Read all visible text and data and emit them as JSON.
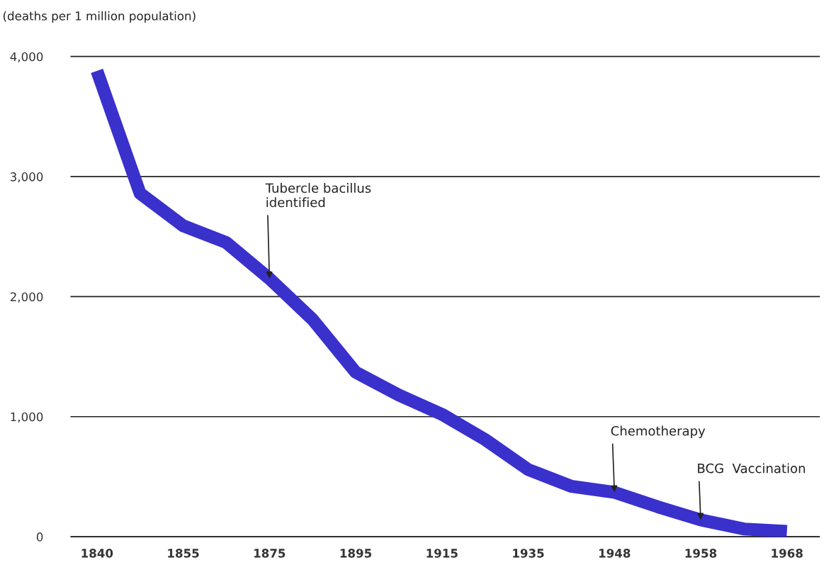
{
  "chart_data": {
    "type": "line",
    "ylabel": "(deaths per 1 million population)",
    "categories": [
      "1840",
      null,
      "1855",
      null,
      "1875",
      null,
      "1895",
      null,
      "1915",
      null,
      "1935",
      null,
      "1948",
      null,
      "1958",
      null,
      "1968"
    ],
    "series": [
      {
        "color": "#3a30cc",
        "values": [
          3880,
          2860,
          2590,
          2450,
          2150,
          1810,
          1370,
          1180,
          1020,
          810,
          560,
          420,
          370,
          250,
          140,
          65,
          45
        ]
      }
    ],
    "ylim": [
      0,
      4000
    ],
    "yticks": [
      {
        "value": 0,
        "label": "0"
      },
      {
        "value": 1000,
        "label": "1,000"
      },
      {
        "value": 2000,
        "label": "2,000"
      },
      {
        "value": 3000,
        "label": "3,000"
      },
      {
        "value": 4000,
        "label": "4,000"
      }
    ],
    "grid": "y",
    "annotations": [
      {
        "text": "Tubercle bacillus\nidentified",
        "x": "1875",
        "y": 2150
      },
      {
        "text": "Chemotherapy",
        "x": "1948",
        "y": 370
      },
      {
        "text": "BCG  Vaccination",
        "x": "1958",
        "y": 140
      }
    ]
  }
}
